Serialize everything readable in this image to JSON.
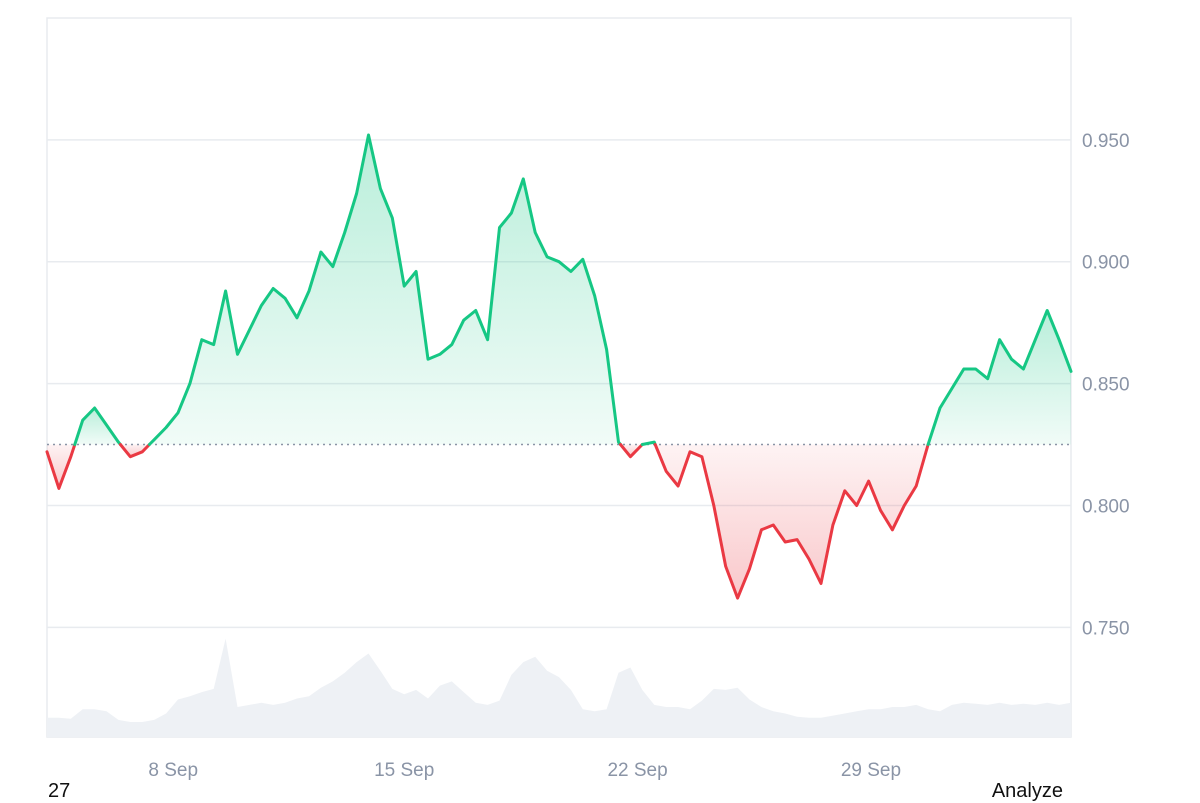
{
  "chart_data": {
    "type": "line",
    "title": "",
    "xlabel": "",
    "ylabel": "",
    "x_ticks": [
      "8 Sep",
      "15 Sep",
      "22 Sep",
      "29 Sep"
    ],
    "y_ticks": [
      "0.950",
      "0.900",
      "0.850",
      "0.800",
      "0.750"
    ],
    "ylim": [
      0.705,
      1.0
    ],
    "baseline": 0.825,
    "grid": true,
    "legend": "none",
    "series": [
      {
        "x": [
          0.0,
          0.5,
          1.0,
          1.5,
          2.0,
          2.5,
          3.0,
          3.5,
          4.0,
          4.5,
          5.0,
          5.5,
          6.0,
          6.5,
          7.0,
          7.5,
          8.0,
          8.5,
          9.0,
          9.5,
          10.0,
          10.5,
          11.0,
          11.5,
          12.0,
          12.5,
          13.0,
          13.5,
          14.0,
          14.5,
          15.0,
          15.5,
          16.0,
          16.5,
          17.0,
          17.5,
          18.0,
          18.5,
          19.0,
          19.5,
          20.0,
          20.5,
          21.0,
          21.5,
          22.0,
          22.5,
          23.0,
          23.5,
          24.0,
          24.5,
          25.0,
          25.5,
          26.0,
          26.5,
          27.0,
          27.5,
          28.0,
          28.5,
          29.0,
          29.5,
          30.0,
          30.5,
          31.0,
          31.5,
          32.0,
          32.5,
          33.0,
          33.5,
          34.0,
          34.5,
          35.0,
          35.5,
          36.0,
          36.5,
          37.0,
          37.5,
          38.0,
          38.5,
          39.0,
          39.5,
          40.0,
          40.5,
          41.0,
          41.5,
          42.0,
          42.5,
          43.0
        ],
        "values": [
          0.822,
          0.807,
          0.82,
          0.835,
          0.84,
          0.833,
          0.826,
          0.82,
          0.822,
          0.827,
          0.832,
          0.838,
          0.85,
          0.868,
          0.866,
          0.888,
          0.862,
          0.872,
          0.882,
          0.889,
          0.885,
          0.877,
          0.888,
          0.904,
          0.898,
          0.912,
          0.928,
          0.952,
          0.93,
          0.918,
          0.89,
          0.896,
          0.86,
          0.862,
          0.866,
          0.876,
          0.88,
          0.868,
          0.914,
          0.92,
          0.934,
          0.912,
          0.902,
          0.9,
          0.896,
          0.901,
          0.886,
          0.864,
          0.826,
          0.82,
          0.825,
          0.826,
          0.814,
          0.808,
          0.822,
          0.82,
          0.8,
          0.775,
          0.762,
          0.774,
          0.79,
          0.792,
          0.785,
          0.786,
          0.778,
          0.768,
          0.792,
          0.806,
          0.8,
          0.81,
          0.798,
          0.79,
          0.8,
          0.808,
          0.825,
          0.84,
          0.848,
          0.856,
          0.856,
          0.852,
          0.868,
          0.86,
          0.856,
          0.868,
          0.88,
          0.868,
          0.855
        ]
      }
    ]
  },
  "colors": {
    "up_line": "#16c784",
    "down_line": "#ea3943",
    "up_fill": "#16c784",
    "down_fill": "#ea3943",
    "grid": "#e8ebef",
    "volume": "#eef1f5",
    "baseline_dots": "#8a94a6"
  },
  "volume": {
    "values": [
      0.18,
      0.18,
      0.17,
      0.26,
      0.26,
      0.24,
      0.16,
      0.14,
      0.14,
      0.16,
      0.22,
      0.35,
      0.38,
      0.42,
      0.45,
      0.92,
      0.28,
      0.3,
      0.32,
      0.3,
      0.32,
      0.36,
      0.38,
      0.46,
      0.52,
      0.6,
      0.7,
      0.78,
      0.62,
      0.45,
      0.4,
      0.44,
      0.36,
      0.48,
      0.52,
      0.42,
      0.32,
      0.3,
      0.34,
      0.58,
      0.7,
      0.75,
      0.62,
      0.56,
      0.44,
      0.26,
      0.24,
      0.26,
      0.6,
      0.65,
      0.44,
      0.3,
      0.28,
      0.28,
      0.26,
      0.34,
      0.45,
      0.44,
      0.46,
      0.35,
      0.28,
      0.24,
      0.22,
      0.19,
      0.18,
      0.18,
      0.2,
      0.22,
      0.24,
      0.26,
      0.26,
      0.28,
      0.28,
      0.3,
      0.26,
      0.24,
      0.3,
      0.32,
      0.31,
      0.3,
      0.32,
      0.3,
      0.31,
      0.3,
      0.32,
      0.3,
      0.32
    ]
  },
  "footer": {
    "left": "27",
    "right": "Analyze"
  }
}
